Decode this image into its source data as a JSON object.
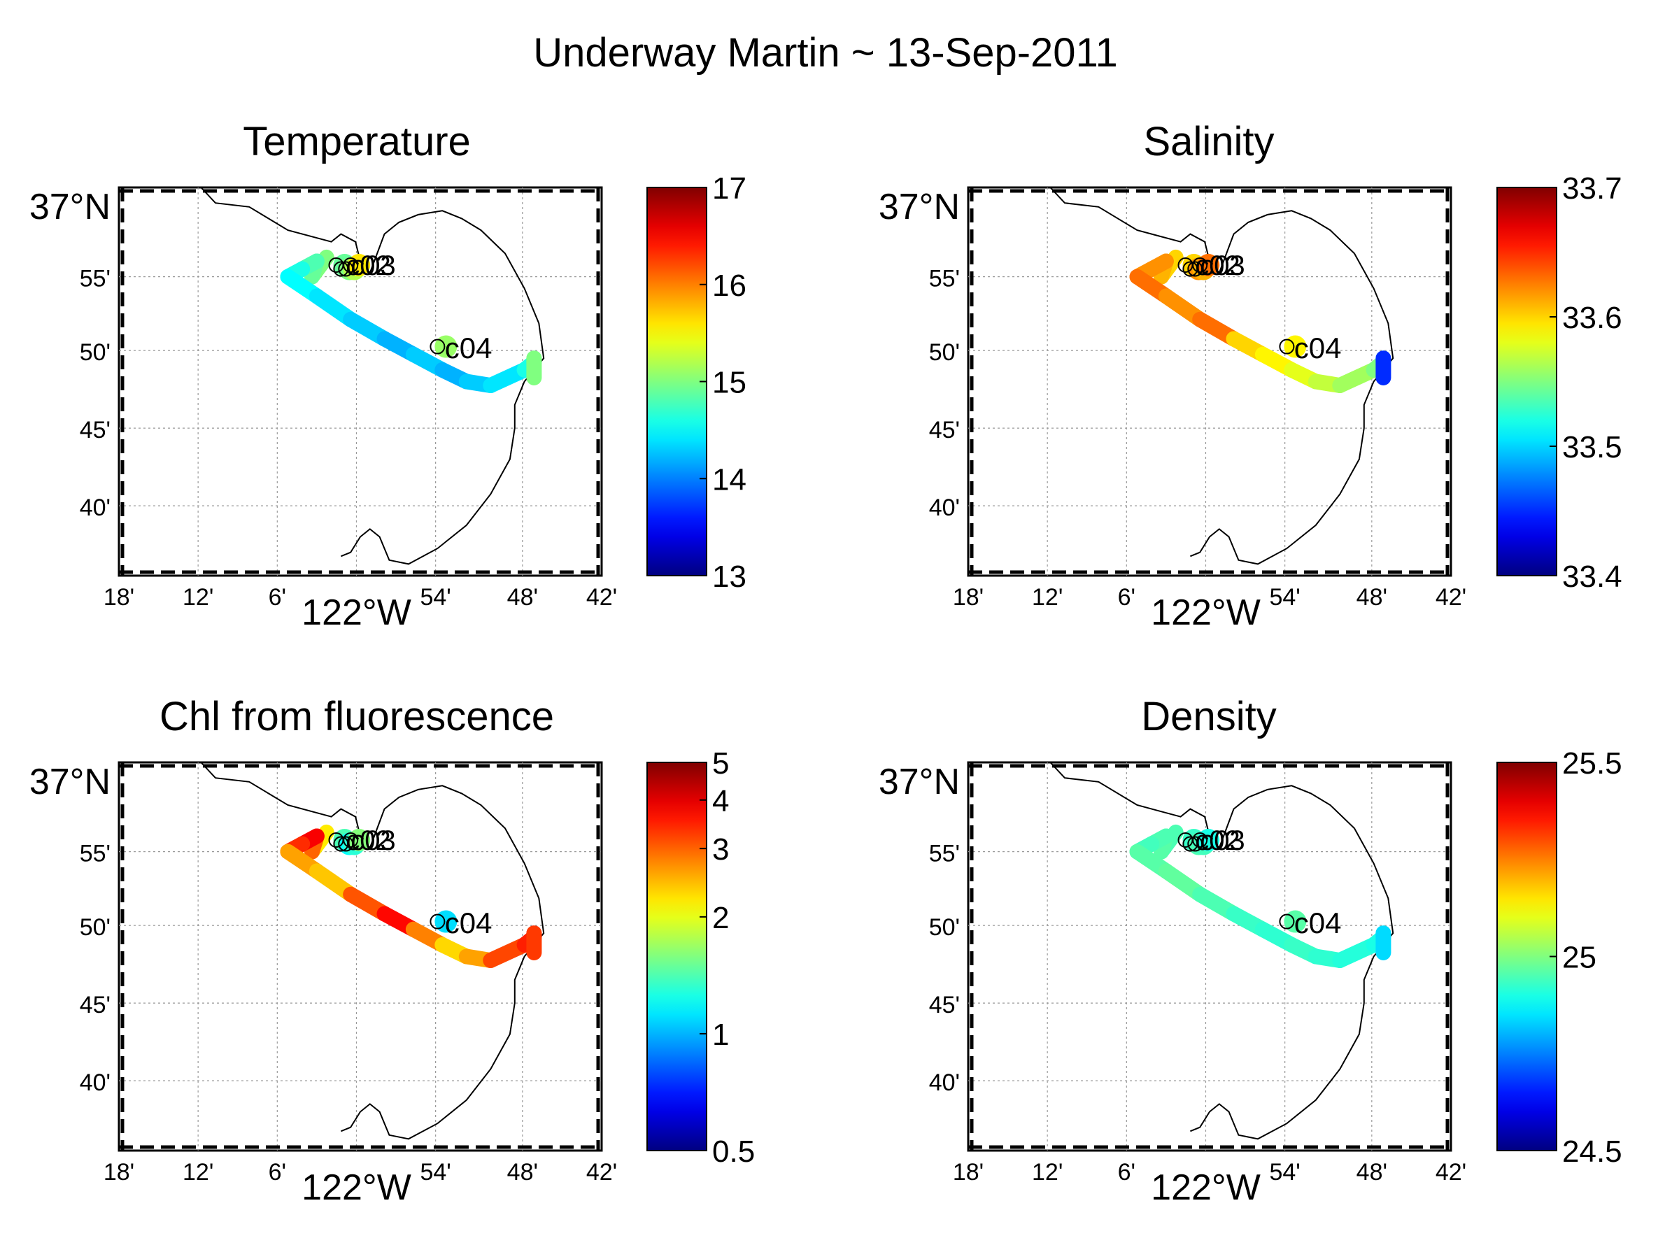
{
  "figure": {
    "title": "Underway Martin ~ 13-Sep-2011"
  },
  "map": {
    "lon_ticks": [
      "18'",
      "12'",
      "6'",
      "122°W",
      "54'",
      "48'",
      "42'"
    ],
    "lat_ticks": [
      "37°N",
      "55'",
      "50'",
      "45'",
      "40'"
    ],
    "station_labels": [
      "c02",
      "c03",
      "c04"
    ],
    "lon_range": [
      -122.3,
      -121.7
    ],
    "lat_range": [
      36.6,
      37.0
    ]
  },
  "chart_data": [
    {
      "type": "scatter",
      "title": "Temperature",
      "xlabel": "",
      "ylabel": "",
      "colorbar": {
        "ticks": [
          "13",
          "14",
          "15",
          "16",
          "17"
        ],
        "tick_values": [
          13,
          14,
          15,
          16,
          17
        ],
        "range": [
          13,
          17
        ],
        "scale": "linear"
      },
      "track_values": [
        15.0,
        14.9,
        14.8,
        14.6,
        14.5,
        14.4,
        14.3,
        14.2,
        14.3,
        14.2,
        14.3,
        14.4,
        14.6,
        14.8,
        15.0,
        15.4
      ],
      "cluster_values": [
        14.9,
        15.0,
        15.2,
        15.6,
        15.1
      ]
    },
    {
      "type": "scatter",
      "title": "Salinity",
      "xlabel": "",
      "ylabel": "",
      "colorbar": {
        "ticks": [
          "33.4",
          "33.5",
          "33.6",
          "33.7"
        ],
        "tick_values": [
          33.4,
          33.5,
          33.6,
          33.7
        ],
        "range": [
          33.4,
          33.7
        ],
        "scale": "linear"
      },
      "track_values": [
        33.6,
        33.61,
        33.62,
        33.62,
        33.63,
        33.62,
        33.63,
        33.6,
        33.59,
        33.58,
        33.57,
        33.56,
        33.55,
        33.5,
        33.45,
        33.47
      ],
      "cluster_values": [
        33.6,
        33.62,
        33.61,
        33.63,
        33.59
      ]
    },
    {
      "type": "scatter",
      "title": "Chl from fluorescence",
      "xlabel": "",
      "ylabel": "",
      "colorbar": {
        "ticks": [
          "0.5",
          "1",
          "2",
          "3",
          "4",
          "5"
        ],
        "tick_values": [
          0.5,
          1,
          2,
          3,
          4,
          5
        ],
        "range": [
          0.5,
          5
        ],
        "scale": "log"
      },
      "track_values": [
        2.2,
        3.0,
        3.8,
        3.4,
        2.6,
        2.4,
        3.1,
        3.7,
        2.8,
        2.3,
        2.6,
        3.2,
        3.5,
        3.9,
        3.3,
        2.9
      ],
      "cluster_values": [
        1.4,
        1.2,
        1.3,
        1.6,
        1.1
      ]
    },
    {
      "type": "scatter",
      "title": "Density",
      "xlabel": "",
      "ylabel": "",
      "colorbar": {
        "ticks": [
          "24.5",
          "25",
          "25.5"
        ],
        "tick_values": [
          24.5,
          25,
          25.5
        ],
        "range": [
          24.5,
          25.5
        ],
        "scale": "linear"
      },
      "track_values": [
        24.95,
        24.96,
        24.95,
        24.94,
        24.96,
        24.97,
        24.95,
        24.93,
        24.92,
        24.93,
        24.92,
        24.91,
        24.9,
        24.88,
        24.84,
        24.78
      ],
      "cluster_values": [
        24.93,
        24.95,
        24.94,
        24.9,
        24.96
      ]
    }
  ]
}
